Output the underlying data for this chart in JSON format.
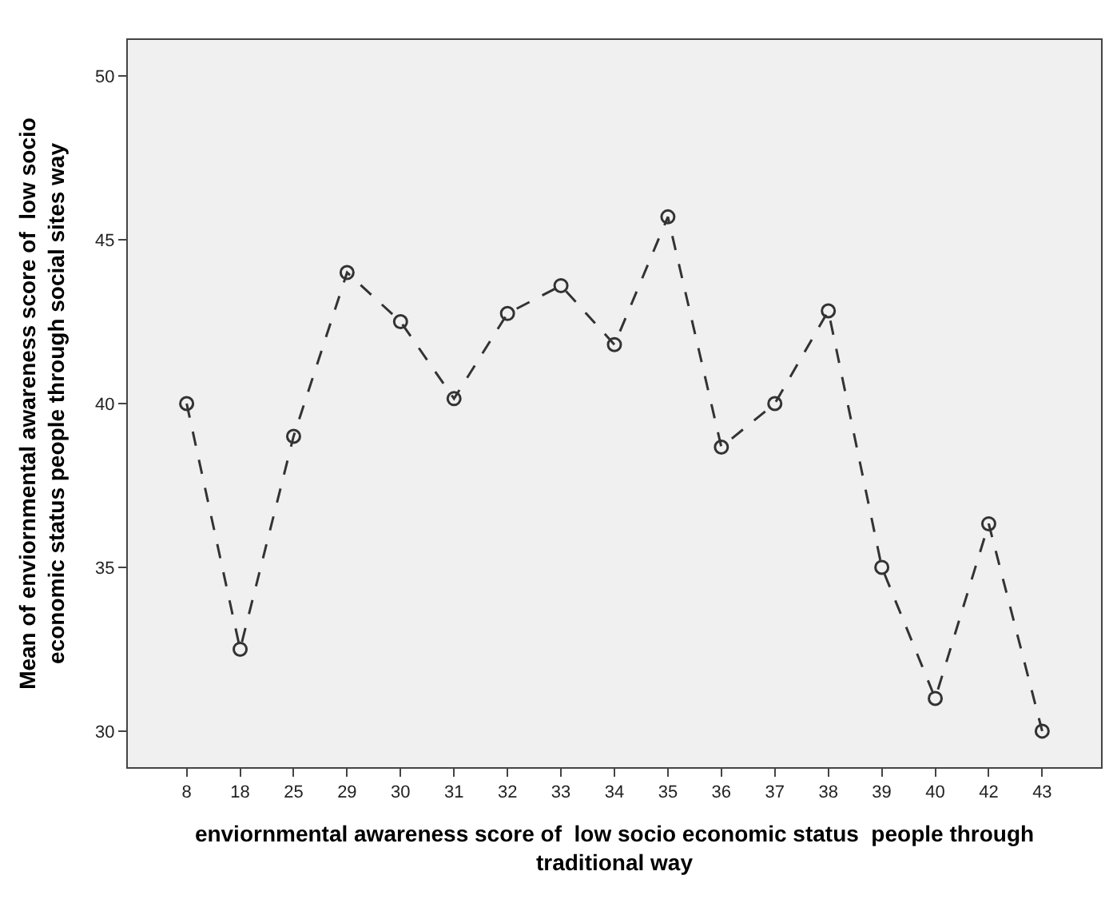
{
  "chart_data": {
    "type": "line",
    "xlabel": "enviornmental awareness score of  low socio economic status  people through traditional way",
    "ylabel": "Mean of enviornmental awareness score of  low socio economic status people through social sites way",
    "categories": [
      "8",
      "18",
      "25",
      "29",
      "30",
      "31",
      "32",
      "33",
      "34",
      "35",
      "36",
      "37",
      "38",
      "39",
      "40",
      "42",
      "43"
    ],
    "series": [
      {
        "color": "#333333",
        "values": [
          40.0,
          32.5,
          39.0,
          44.0,
          42.5,
          40.15,
          42.75,
          43.6,
          41.8,
          45.7,
          38.67,
          40.0,
          42.83,
          35.0,
          31.0,
          36.33,
          30.0
        ]
      }
    ],
    "ylim": [
      28.9,
      51.1
    ],
    "yticks": [
      30,
      35,
      40,
      45,
      50
    ],
    "marker": "circle",
    "line_style": "dashed",
    "grid": false
  }
}
